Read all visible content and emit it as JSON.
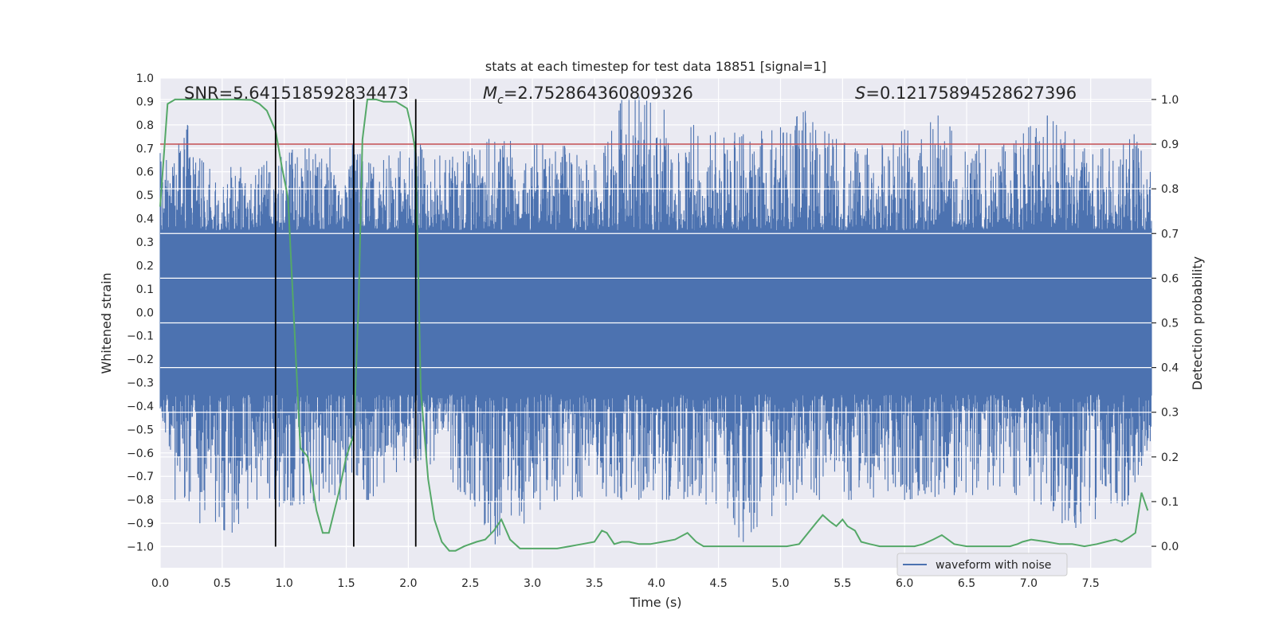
{
  "chart_data": {
    "type": "line",
    "title": "stats at each timestep for test data 18851 [signal=1]",
    "xlabel": "Time (s)",
    "ylabel_left": "Whitened strain",
    "ylabel_right": "Detection probability",
    "xlim": [
      0.0,
      7.99
    ],
    "ylim_left": [
      -1.09,
      1.0
    ],
    "ylim_right": [
      -0.048,
      1.048
    ],
    "x_ticks": [
      0.0,
      0.5,
      1.0,
      1.5,
      2.0,
      2.5,
      3.0,
      3.5,
      4.0,
      4.5,
      5.0,
      5.5,
      6.0,
      6.5,
      7.0,
      7.5
    ],
    "x_tick_labels": [
      "0.0",
      "0.5",
      "1.0",
      "1.5",
      "2.0",
      "2.5",
      "3.0",
      "3.5",
      "4.0",
      "4.5",
      "5.0",
      "5.5",
      "6.0",
      "6.5",
      "7.0",
      "7.5"
    ],
    "y_left_ticks": [
      1.0,
      0.9,
      0.8,
      0.7,
      0.6,
      0.5,
      0.4,
      0.3,
      0.2,
      0.1,
      0.0,
      -0.1,
      -0.2,
      -0.3,
      -0.4,
      -0.5,
      -0.6,
      -0.7,
      -0.8,
      -0.9,
      -1.0
    ],
    "y_left_tick_labels": [
      "1.0",
      "0.9",
      "0.8",
      "0.7",
      "0.6",
      "0.5",
      "0.4",
      "0.3",
      "0.2",
      "0.1",
      "0.0",
      "−0.1",
      "−0.2",
      "−0.3",
      "−0.4",
      "−0.5",
      "−0.6",
      "−0.7",
      "−0.8",
      "−0.9",
      "−1.0"
    ],
    "y_right_ticks": [
      1.0,
      0.9,
      0.8,
      0.7,
      0.6,
      0.5,
      0.4,
      0.3,
      0.2,
      0.1,
      0.0
    ],
    "y_right_tick_labels": [
      "1.0",
      "0.9",
      "0.8",
      "0.7",
      "0.6",
      "0.5",
      "0.4",
      "0.3",
      "0.2",
      "0.1",
      "0.0"
    ],
    "grid": true,
    "legend": {
      "placement": "lower-right",
      "entries": [
        "waveform with noise"
      ]
    },
    "annotations": {
      "snr": "SNR=5.641518592834473",
      "mc_symbol": "M",
      "mc_subscript": "c",
      "mc_value": "=2.752864360809326",
      "s_symbol": "S",
      "s_value": "=0.12175894528627396"
    },
    "threshold": {
      "axis": "right",
      "value": 0.9,
      "color": "#c44e52"
    },
    "vertical_lines": [
      0.93,
      1.56,
      2.06
    ],
    "vertical_line_range": [
      -1.0,
      0.91
    ],
    "series": [
      {
        "name": "waveform with noise",
        "axis": "left",
        "color": "#4c72b0",
        "kind": "noise",
        "core_amplitude": 0.35,
        "envelope_top": [
          [
            0.0,
            0.68
          ],
          [
            0.1,
            0.62
          ],
          [
            0.15,
            0.72
          ],
          [
            0.22,
            0.8
          ],
          [
            0.35,
            0.64
          ],
          [
            0.57,
            0.62
          ],
          [
            0.82,
            0.62
          ],
          [
            0.93,
            0.7
          ],
          [
            1.2,
            0.7
          ],
          [
            1.55,
            0.72
          ],
          [
            1.72,
            0.62
          ],
          [
            2.06,
            0.76
          ],
          [
            2.3,
            0.65
          ],
          [
            2.65,
            0.74
          ],
          [
            3.26,
            0.71
          ],
          [
            3.5,
            0.63
          ],
          [
            3.72,
            0.91
          ],
          [
            3.86,
            0.92
          ],
          [
            4.3,
            0.8
          ],
          [
            4.7,
            0.76
          ],
          [
            5.0,
            0.79
          ],
          [
            5.2,
            0.86
          ],
          [
            5.45,
            0.74
          ],
          [
            5.7,
            0.7
          ],
          [
            6.0,
            0.78
          ],
          [
            6.27,
            0.84
          ],
          [
            6.6,
            0.72
          ],
          [
            6.8,
            0.72
          ],
          [
            7.0,
            0.79
          ],
          [
            7.15,
            0.84
          ],
          [
            7.45,
            0.7
          ],
          [
            7.65,
            0.7
          ],
          [
            7.85,
            0.76
          ],
          [
            7.98,
            0.6
          ]
        ],
        "envelope_bottom": [
          [
            0.0,
            -0.41
          ],
          [
            0.12,
            -0.8
          ],
          [
            0.32,
            -0.9
          ],
          [
            0.58,
            -0.94
          ],
          [
            0.78,
            -0.8
          ],
          [
            0.96,
            -0.83
          ],
          [
            1.45,
            -0.8
          ],
          [
            1.68,
            -0.8
          ],
          [
            2.1,
            -0.63
          ],
          [
            2.5,
            -0.8
          ],
          [
            2.7,
            -0.99
          ],
          [
            3.2,
            -0.8
          ],
          [
            3.72,
            -0.8
          ],
          [
            4.1,
            -0.8
          ],
          [
            4.4,
            -0.82
          ],
          [
            4.7,
            -0.98
          ],
          [
            5.1,
            -0.8
          ],
          [
            5.55,
            -0.8
          ],
          [
            6.0,
            -0.8
          ],
          [
            6.4,
            -0.78
          ],
          [
            6.9,
            -0.78
          ],
          [
            7.1,
            -0.82
          ],
          [
            7.27,
            -0.9
          ],
          [
            7.38,
            -0.92
          ],
          [
            7.8,
            -0.82
          ],
          [
            7.98,
            -0.55
          ]
        ]
      },
      {
        "name": "detection probability",
        "axis": "right",
        "color": "#55a868",
        "x": [
          0.0,
          0.06,
          0.12,
          0.2,
          0.4,
          0.6,
          0.74,
          0.8,
          0.86,
          0.93,
          0.98,
          1.03,
          1.13,
          1.19,
          1.26,
          1.31,
          1.36,
          1.44,
          1.5,
          1.56,
          1.6,
          1.63,
          1.67,
          1.74,
          1.8,
          1.9,
          1.99,
          2.03,
          2.06,
          2.1,
          2.16,
          2.21,
          2.27,
          2.33,
          2.38,
          2.45,
          2.55,
          2.62,
          2.69,
          2.75,
          2.82,
          2.9,
          3.0,
          3.1,
          3.2,
          3.3,
          3.4,
          3.5,
          3.56,
          3.6,
          3.66,
          3.72,
          3.78,
          3.86,
          3.95,
          4.05,
          4.15,
          4.25,
          4.32,
          4.38,
          4.5,
          4.7,
          4.9,
          5.05,
          5.15,
          5.28,
          5.34,
          5.4,
          5.45,
          5.5,
          5.54,
          5.6,
          5.65,
          5.72,
          5.8,
          5.9,
          6.0,
          6.08,
          6.15,
          6.23,
          6.3,
          6.4,
          6.5,
          6.6,
          6.7,
          6.8,
          6.85,
          6.91,
          6.95,
          7.02,
          7.15,
          7.25,
          7.35,
          7.45,
          7.55,
          7.62,
          7.7,
          7.75,
          7.81,
          7.86,
          7.91,
          7.96
        ],
        "values": [
          0.76,
          0.99,
          1.0,
          1.0,
          1.0,
          1.0,
          0.999,
          0.99,
          0.975,
          0.93,
          0.85,
          0.78,
          0.22,
          0.2,
          0.08,
          0.03,
          0.03,
          0.12,
          0.2,
          0.25,
          0.55,
          0.91,
          1.0,
          1.0,
          0.995,
          0.995,
          0.98,
          0.93,
          0.88,
          0.35,
          0.15,
          0.06,
          0.01,
          -0.01,
          -0.01,
          0.0,
          0.01,
          0.015,
          0.035,
          0.06,
          0.015,
          -0.005,
          -0.005,
          -0.005,
          -0.005,
          0.0,
          0.005,
          0.01,
          0.035,
          0.03,
          0.005,
          0.01,
          0.01,
          0.005,
          0.005,
          0.01,
          0.015,
          0.03,
          0.01,
          0.0,
          0.0,
          0.0,
          0.0,
          0.0,
          0.005,
          0.05,
          0.07,
          0.055,
          0.045,
          0.06,
          0.045,
          0.035,
          0.01,
          0.005,
          0.0,
          0.0,
          0.0,
          0.0,
          0.005,
          0.015,
          0.025,
          0.005,
          0.0,
          0.0,
          0.0,
          0.0,
          0.0,
          0.005,
          0.01,
          0.015,
          0.01,
          0.005,
          0.005,
          0.0,
          0.005,
          0.01,
          0.015,
          0.01,
          0.02,
          0.03,
          0.12,
          0.08
        ]
      }
    ]
  }
}
